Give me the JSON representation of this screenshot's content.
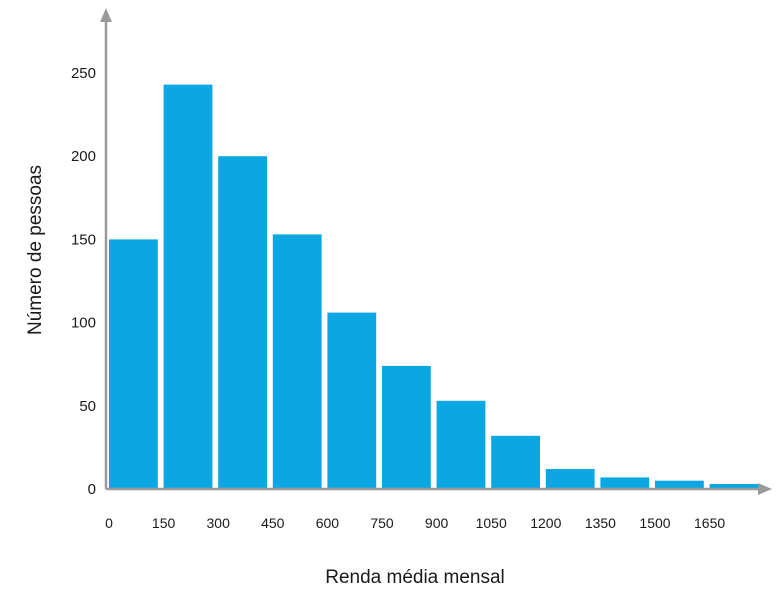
{
  "chart_data": {
    "type": "bar",
    "title": "",
    "xlabel": "Renda média mensal",
    "ylabel": "Número de pessoas",
    "bins": [
      [
        0,
        150
      ],
      [
        150,
        300
      ],
      [
        300,
        450
      ],
      [
        450,
        600
      ],
      [
        600,
        750
      ],
      [
        750,
        900
      ],
      [
        900,
        1050
      ],
      [
        1050,
        1200
      ],
      [
        1200,
        1350
      ],
      [
        1350,
        1500
      ],
      [
        1500,
        1650
      ],
      [
        1650,
        1800
      ]
    ],
    "values": [
      150,
      243,
      200,
      153,
      106,
      74,
      53,
      32,
      12,
      7,
      5,
      3
    ],
    "x_tick_labels": [
      "0",
      "150",
      "300",
      "450",
      "600",
      "750",
      "900",
      "1050",
      "1200",
      "1350",
      "1500",
      "1650"
    ],
    "y_tick_labels": [
      "0",
      "50",
      "100",
      "150",
      "200",
      "250"
    ],
    "ylim": [
      0,
      285
    ],
    "grid": false,
    "bar_color": "#0aa7e3",
    "axis_color": "#9a9a9a"
  }
}
